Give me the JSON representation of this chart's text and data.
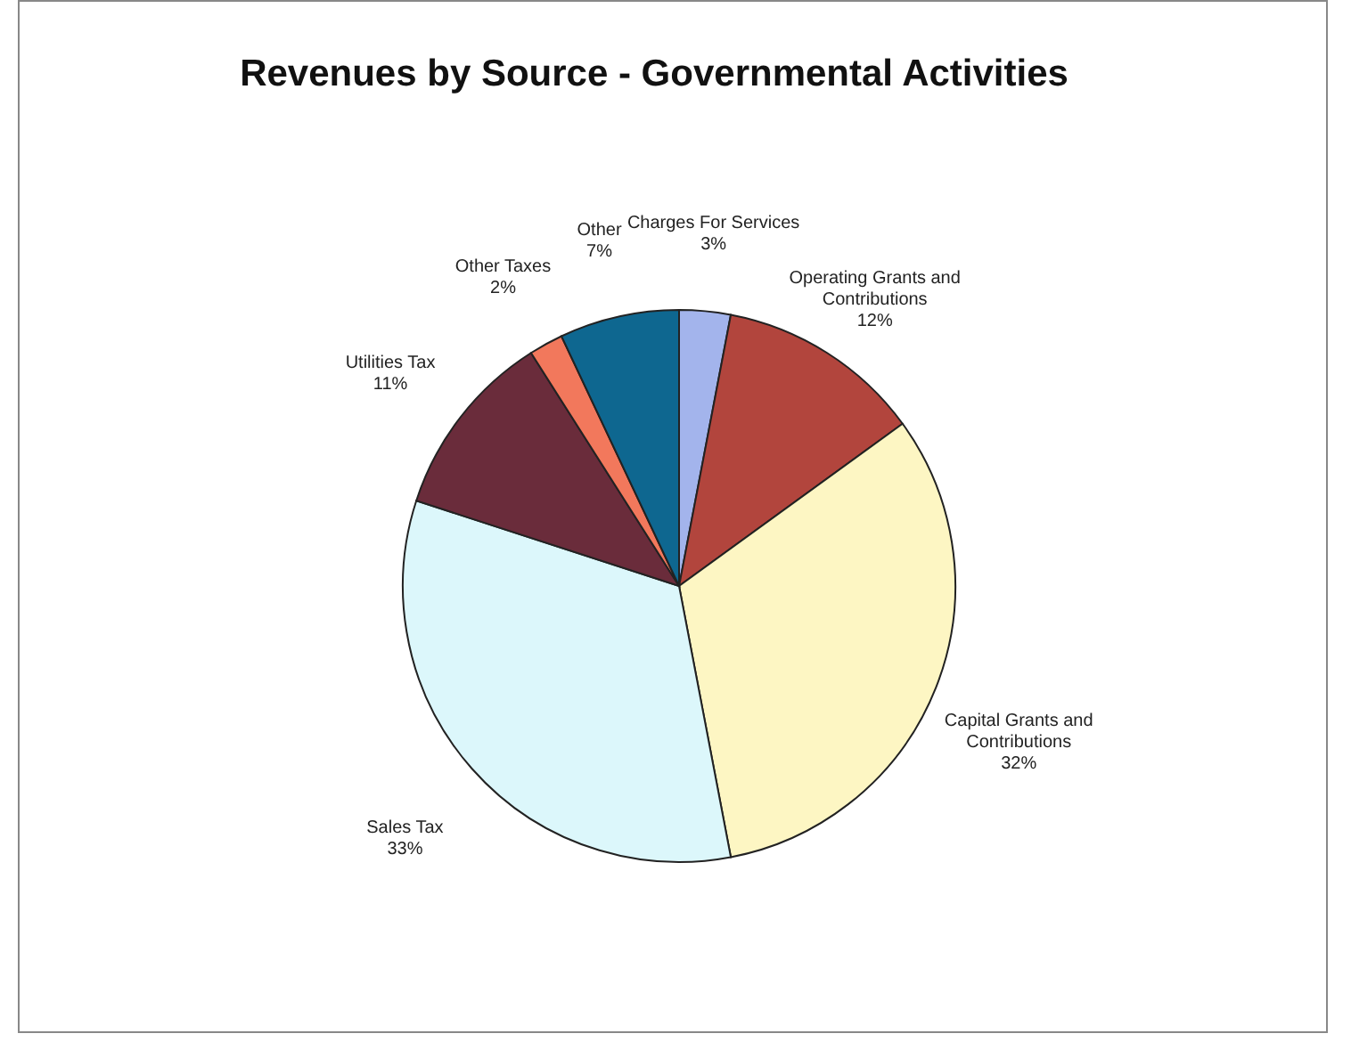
{
  "chart_data": {
    "type": "pie",
    "title": "Revenues by Source - Governmental Activities",
    "categories": [
      "Charges For Services",
      "Operating Grants and Contributions",
      "Capital Grants and Contributions",
      "Sales Tax",
      "Utilities Tax",
      "Other Taxes",
      "Other"
    ],
    "values": [
      3,
      12,
      32,
      33,
      11,
      2,
      7
    ],
    "value_labels": [
      "3%",
      "12%",
      "32%",
      "33%",
      "11%",
      "2%",
      "7%"
    ],
    "colors": [
      "#a3b4ec",
      "#b2453d",
      "#fdf6c3",
      "#dcf7fb",
      "#6a2c3b",
      "#f2785c",
      "#0e6790"
    ],
    "legend": false
  }
}
